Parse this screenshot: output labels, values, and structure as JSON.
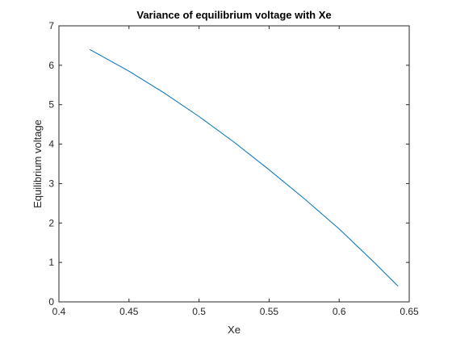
{
  "chart_data": {
    "type": "line",
    "title": "Variance of equilibrium voltage with Xe",
    "xlabel": "Xe",
    "ylabel": "Equilibrium voltage",
    "xlim": [
      0.4,
      0.65
    ],
    "ylim": [
      0,
      7
    ],
    "xticks": [
      0.4,
      0.45,
      0.5,
      0.55,
      0.6,
      0.65
    ],
    "xtick_labels": [
      "0.4",
      "0.45",
      "0.5",
      "0.55",
      "0.6",
      "0.65"
    ],
    "yticks": [
      0,
      1,
      2,
      3,
      4,
      5,
      6,
      7
    ],
    "ytick_labels": [
      "0",
      "1",
      "2",
      "3",
      "4",
      "5",
      "6",
      "7"
    ],
    "grid": false,
    "box": true,
    "colors": {
      "line": "#0072BD",
      "axis": "#262626"
    },
    "series": [
      {
        "x": [
          0.422,
          0.45,
          0.475,
          0.5,
          0.525,
          0.55,
          0.575,
          0.6,
          0.625,
          0.642
        ],
        "y": [
          6.4,
          5.85,
          5.3,
          4.7,
          4.05,
          3.35,
          2.62,
          1.85,
          1.0,
          0.4
        ]
      }
    ]
  }
}
